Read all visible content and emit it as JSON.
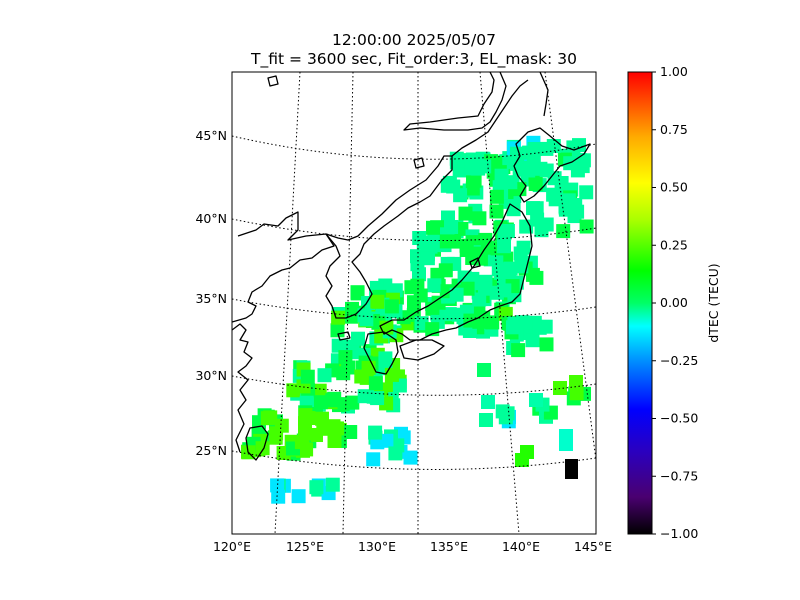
{
  "title_line1": "12:00:00 2025/05/07",
  "title_line2": "T_fit = 3600 sec, Fit_order:3, EL_mask: 30",
  "map": {
    "lat_labels": [
      "45°N",
      "40°N",
      "35°N",
      "30°N",
      "25°N"
    ],
    "lat_values": [
      45,
      40,
      35,
      30,
      25
    ],
    "lon_labels": [
      "120°E",
      "125°E",
      "130°E",
      "135°E",
      "140°E",
      "145°E"
    ],
    "lon_values": [
      120,
      125,
      130,
      135,
      140,
      145
    ],
    "grid_style": "dotted"
  },
  "colorbar": {
    "label": "dTEC (TECU)",
    "ticks": [
      "1.00",
      "0.75",
      "0.50",
      "0.25",
      "0.00",
      "−0.25",
      "−0.50",
      "−0.75",
      "−1.00"
    ],
    "range": [
      -1.0,
      1.0
    ],
    "colormap": "nipy_spectral-like",
    "colors": [
      "#ff0000",
      "#ff8800",
      "#ffff00",
      "#88ff00",
      "#00ff00",
      "#00ffcc",
      "#0000ff",
      "#440088",
      "#000000"
    ]
  },
  "chart_data": {
    "type": "heatmap",
    "title": "12:00:00 2025/05/07 T_fit = 3600 sec, Fit_order:3, EL_mask: 30",
    "clabel": "dTEC (TECU)",
    "clim": [
      -1.0,
      1.0
    ],
    "xlabel": "",
    "ylabel": "",
    "dominant_value_range": [
      -0.1,
      0.25
    ],
    "outlier_cell": {
      "lon": 143.5,
      "lat": 24,
      "value": -1.0
    }
  }
}
